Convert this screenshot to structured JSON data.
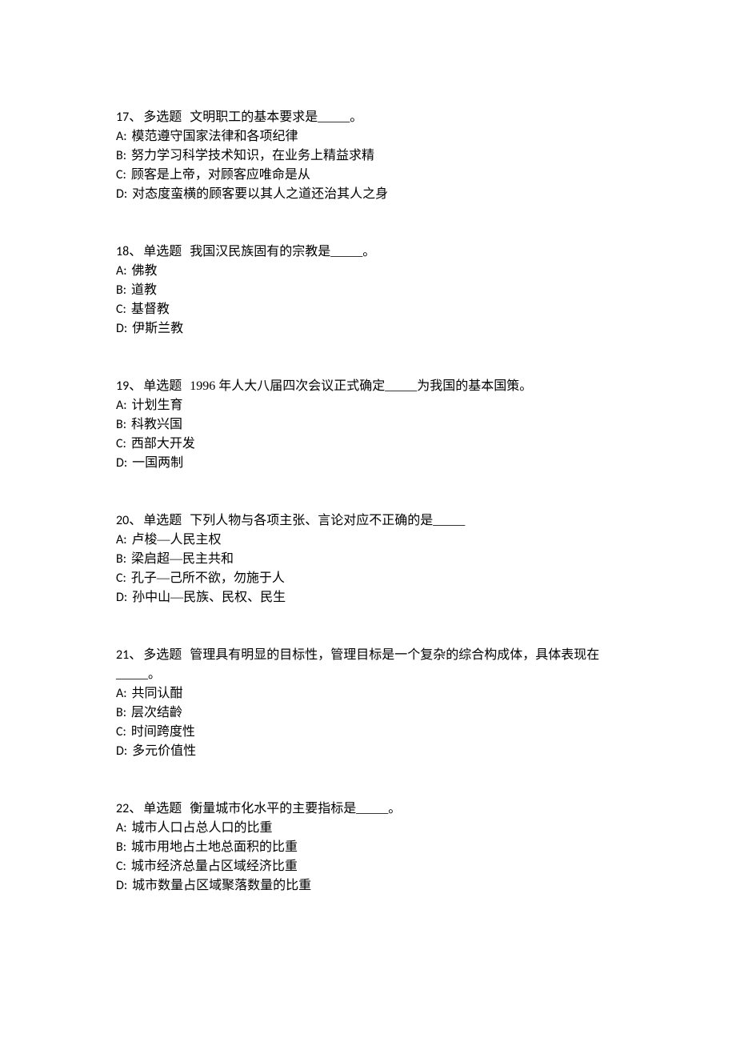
{
  "questions": [
    {
      "number": "17、",
      "type": "多选题",
      "text": "文明职工的基本要求是_____。",
      "options": [
        {
          "label": "A:",
          "text": "模范遵守国家法律和各项纪律"
        },
        {
          "label": "B:",
          "text": "努力学习科学技术知识，在业务上精益求精"
        },
        {
          "label": "C:",
          "text": "顾客是上帝，对顾客应唯命是从"
        },
        {
          "label": "D:",
          "text": "对态度蛮横的顾客要以其人之道还治其人之身"
        }
      ]
    },
    {
      "number": "18、",
      "type": "单选题",
      "text": "我国汉民族固有的宗教是_____。",
      "options": [
        {
          "label": "A:",
          "text": "佛教"
        },
        {
          "label": "B:",
          "text": "道教"
        },
        {
          "label": "C:",
          "text": "基督教"
        },
        {
          "label": "D:",
          "text": "伊斯兰教"
        }
      ]
    },
    {
      "number": "19、",
      "type": "单选题",
      "text": "1996 年人大八届四次会议正式确定_____为我国的基本国策。",
      "options": [
        {
          "label": "A:",
          "text": "计划生育"
        },
        {
          "label": "B:",
          "text": "科教兴国"
        },
        {
          "label": "C:",
          "text": "西部大开发"
        },
        {
          "label": "D:",
          "text": "一国两制"
        }
      ]
    },
    {
      "number": "20、",
      "type": "单选题",
      "text": "下列人物与各项主张、言论对应不正确的是_____",
      "options": [
        {
          "label": "A:",
          "text": "卢梭—人民主权"
        },
        {
          "label": "B:",
          "text": "梁启超—民主共和"
        },
        {
          "label": "C:",
          "text": "孔子—己所不欲，勿施于人"
        },
        {
          "label": "D:",
          "text": "孙中山—民族、民权、民生"
        }
      ]
    },
    {
      "number": "21、",
      "type": "多选题",
      "text": "管理具有明显的目标性，管理目标是一个复杂的综合构成体，具体表现在_____。",
      "options": [
        {
          "label": "A:",
          "text": "共同认酣"
        },
        {
          "label": "B:",
          "text": "层次结齡"
        },
        {
          "label": "C:",
          "text": "时间跨度性"
        },
        {
          "label": "D:",
          "text": "多元价值性"
        }
      ]
    },
    {
      "number": "22、",
      "type": "单选题",
      "text": "衡量城市化水平的主要指标是_____。",
      "options": [
        {
          "label": "A:",
          "text": "城市人口占总人口的比重"
        },
        {
          "label": "B:",
          "text": "城市用地占土地总面积的比重"
        },
        {
          "label": "C:",
          "text": "城市经济总量占区域经济比重"
        },
        {
          "label": "D:",
          "text": "城市数量占区域聚落数量的比重"
        }
      ]
    }
  ]
}
